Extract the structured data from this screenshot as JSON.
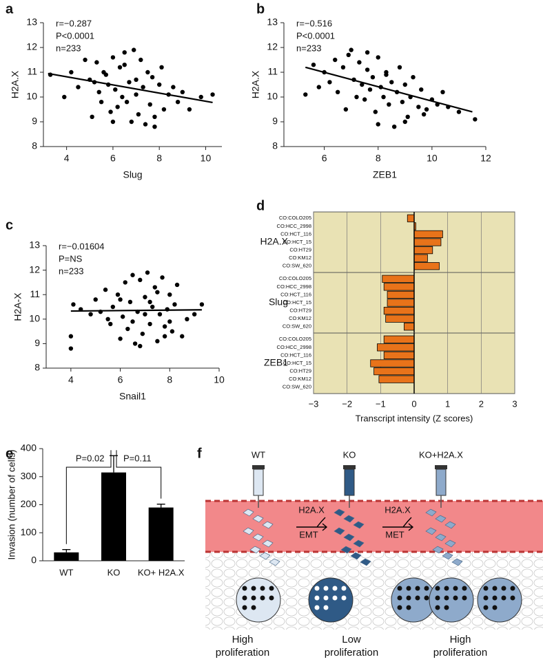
{
  "chart_data": [
    {
      "type": "scatter",
      "panel": "a",
      "xlabel": "Slug",
      "ylabel": "H2A.X",
      "annotations": [
        "r=−0.287",
        "P<0.0001",
        "n=233"
      ],
      "xlim": [
        3,
        10.7
      ],
      "xticks": [
        4,
        6,
        8,
        10
      ],
      "ylim": [
        8,
        13
      ],
      "yticks": [
        8,
        9,
        10,
        11,
        12,
        13
      ],
      "x": [
        3.3,
        3.9,
        4.2,
        4.5,
        4.8,
        5.0,
        5.1,
        5.3,
        5.4,
        5.5,
        5.6,
        5.8,
        5.9,
        6.0,
        6.1,
        6.2,
        6.3,
        6.4,
        6.5,
        6.6,
        6.7,
        6.8,
        6.9,
        7.0,
        7.1,
        7.2,
        7.3,
        7.4,
        7.5,
        7.6,
        7.7,
        7.8,
        8.0,
        8.1,
        8.2,
        8.4,
        8.6,
        8.8,
        9.0,
        9.3,
        9.8,
        10.3,
        5.2,
        6.0,
        7.0,
        6.5,
        7.8,
        5.7
      ],
      "y": [
        10.9,
        10.0,
        11.0,
        10.4,
        11.5,
        10.7,
        9.2,
        11.4,
        10.2,
        9.8,
        11.0,
        10.5,
        9.4,
        11.6,
        10.3,
        9.6,
        11.2,
        10.0,
        11.8,
        9.8,
        10.6,
        9.0,
        11.9,
        10.1,
        9.3,
        11.5,
        10.4,
        8.9,
        11.0,
        9.7,
        10.8,
        9.2,
        10.5,
        11.2,
        9.5,
        10.1,
        10.4,
        9.8,
        10.2,
        9.5,
        10.0,
        10.1,
        10.6,
        9.0,
        10.7,
        11.3,
        8.8,
        10.9
      ],
      "fit": {
        "x": [
          3.2,
          10.3
        ],
        "y": [
          10.95,
          9.78
        ]
      }
    },
    {
      "type": "scatter",
      "panel": "b",
      "xlabel": "ZEB1",
      "ylabel": "H2A.X",
      "annotations": [
        "r=−0.516",
        "P<0.0001",
        "n=233"
      ],
      "xlim": [
        4.5,
        12
      ],
      "xticks": [
        6,
        8,
        10,
        12
      ],
      "ylim": [
        8,
        13
      ],
      "yticks": [
        8,
        9,
        10,
        11,
        12,
        13
      ],
      "x": [
        5.3,
        5.6,
        5.8,
        6.0,
        6.2,
        6.4,
        6.5,
        6.7,
        6.8,
        7.0,
        7.1,
        7.2,
        7.3,
        7.4,
        7.5,
        7.6,
        7.7,
        7.8,
        7.9,
        8.0,
        8.1,
        8.2,
        8.3,
        8.4,
        8.5,
        8.6,
        8.7,
        8.8,
        8.9,
        9.0,
        9.1,
        9.2,
        9.3,
        9.5,
        9.6,
        9.8,
        10.0,
        10.2,
        10.4,
        10.6,
        11.0,
        11.6,
        6.9,
        7.6,
        8.3,
        9.0,
        9.7,
        8.0
      ],
      "y": [
        10.1,
        11.3,
        10.4,
        11.0,
        10.6,
        11.5,
        10.2,
        11.2,
        9.5,
        11.9,
        10.7,
        10.0,
        11.4,
        10.5,
        9.9,
        11.1,
        10.3,
        10.8,
        9.4,
        11.6,
        10.4,
        10.0,
        11.0,
        9.7,
        10.6,
        8.8,
        10.2,
        11.2,
        9.8,
        10.5,
        9.2,
        10.0,
        10.8,
        9.6,
        10.3,
        9.5,
        9.9,
        9.7,
        10.2,
        9.6,
        9.4,
        9.1,
        11.7,
        11.8,
        10.9,
        9.0,
        9.3,
        8.9
      ],
      "fit": {
        "x": [
          5.3,
          11.5
        ],
        "y": [
          11.2,
          9.4
        ]
      }
    },
    {
      "type": "scatter",
      "panel": "c",
      "xlabel": "Snail1",
      "ylabel": "H2A-X",
      "annotations": [
        "r=−0.01604",
        "P=NS",
        "n=233"
      ],
      "xlim": [
        3,
        10
      ],
      "xticks": [
        4,
        6,
        8,
        10
      ],
      "ylim": [
        8,
        13
      ],
      "yticks": [
        8,
        9,
        10,
        11,
        12,
        13
      ],
      "x": [
        4.0,
        4.0,
        4.1,
        4.4,
        4.8,
        5.0,
        5.2,
        5.4,
        5.6,
        5.7,
        5.9,
        6.0,
        6.1,
        6.2,
        6.3,
        6.4,
        6.5,
        6.6,
        6.7,
        6.8,
        6.9,
        7.0,
        7.1,
        7.2,
        7.3,
        7.4,
        7.5,
        7.6,
        7.7,
        7.8,
        7.9,
        8.0,
        8.1,
        8.2,
        8.3,
        8.5,
        8.7,
        9.0,
        9.3,
        6.0,
        6.5,
        7.0,
        7.5,
        8.0,
        5.5,
        6.8,
        7.2,
        7.8
      ],
      "y": [
        9.3,
        8.8,
        10.6,
        10.4,
        10.2,
        10.8,
        10.3,
        11.2,
        9.8,
        10.5,
        11.0,
        9.2,
        10.1,
        11.5,
        9.6,
        10.7,
        11.8,
        9.0,
        10.3,
        11.6,
        9.4,
        10.9,
        11.9,
        9.8,
        10.5,
        11.3,
        9.1,
        10.2,
        11.7,
        9.7,
        10.4,
        11.0,
        9.5,
        10.6,
        11.4,
        9.3,
        10.0,
        10.2,
        10.6,
        10.8,
        9.9,
        10.2,
        11.1,
        9.9,
        10.0,
        8.9,
        10.7,
        9.3
      ],
      "fit": {
        "x": [
          4.0,
          9.3
        ],
        "y": [
          10.33,
          10.38
        ]
      }
    },
    {
      "type": "hbar-groups",
      "panel": "d",
      "xlabel": "Transcript intensity (Z scores)",
      "color": "#e8731a",
      "background": "#e9e2b4",
      "xlim": [
        -3,
        3
      ],
      "xticks": [
        {
          "value": -3,
          "label": "−3"
        },
        {
          "value": -2,
          "label": "−2"
        },
        {
          "value": -1,
          "label": "−1"
        },
        0,
        1,
        2,
        3
      ],
      "groups": [
        {
          "name": "H2A.X",
          "categories": [
            "CO:COLO205",
            "CO:HCC_2998",
            "CO:HCT_116",
            "CO:HCT_15",
            "CO:HT29",
            "CO:KM12",
            "CO:SW_620"
          ],
          "values": [
            -0.2,
            0.05,
            0.85,
            0.8,
            0.55,
            0.4,
            0.75
          ]
        },
        {
          "name": "Slug",
          "categories": [
            "CO:COLO205",
            "CO:HCC_2998",
            "CO:HCT_116",
            "CO:HCT_15",
            "CO:HT29",
            "CO:KM12",
            "CO:SW_620"
          ],
          "values": [
            -0.95,
            -0.9,
            -0.8,
            -0.8,
            -0.9,
            -0.85,
            -0.3
          ]
        },
        {
          "name": "ZEB1",
          "categories": [
            "CO:COLO205",
            "CO:HCC_2998",
            "CO:HCT_116",
            "CO:HCT_15",
            "CO:HT29",
            "CO:KM12",
            "CO:SW_620"
          ],
          "values": [
            -0.9,
            -1.1,
            -0.9,
            -1.3,
            -1.2,
            -1.05,
            0
          ]
        }
      ]
    },
    {
      "type": "bar",
      "panel": "e",
      "ylabel": "Invasion (number of cells)",
      "color": "#000000",
      "categories": [
        "WT",
        "KO",
        "KO+ H2A.X"
      ],
      "values": [
        30,
        315,
        190
      ],
      "errors": [
        10,
        60,
        12
      ],
      "annotations": [
        "P=0.02",
        "P=0.11"
      ],
      "ylim": [
        0,
        400
      ],
      "yticks": [
        0,
        100,
        200,
        300,
        400
      ]
    }
  ],
  "diagram": {
    "panel": "f",
    "syringes": [
      "WT",
      "KO",
      "KO+H2A.X"
    ],
    "arrows": [
      {
        "label": "H2A.X",
        "sub": "EMT"
      },
      {
        "label": "H2A.X",
        "sub": "MET"
      }
    ],
    "outcomes": [
      [
        "High",
        "proliferation"
      ],
      [
        "Low",
        "proliferation"
      ],
      [
        "High",
        "proliferation"
      ]
    ]
  }
}
